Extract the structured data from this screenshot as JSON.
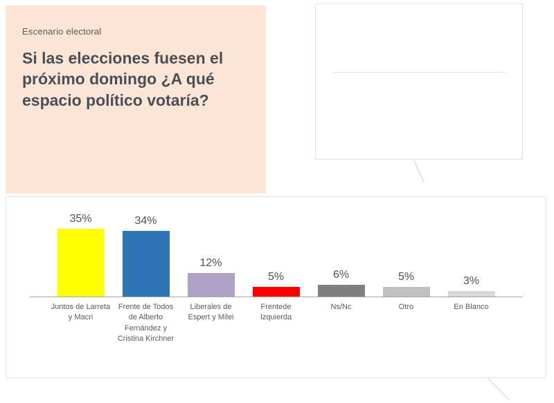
{
  "panel": {
    "kicker": "Escenario electoral",
    "title": "Si las elecciones fuesen el próximo domingo ¿A qué espacio político votaría?"
  },
  "chart_data": {
    "type": "bar",
    "title": "",
    "xlabel": "",
    "ylabel": "",
    "ylim": [
      0,
      40
    ],
    "grid": false,
    "legend": false,
    "categories": [
      "Juntos de Larreta y Macri",
      "Frente de Todos de Alberto Fernández y Cristina Kirchner",
      "Liberales de Espert y Milei",
      "Frentede Izquierda",
      "Ns/Nc",
      "Otro",
      "En Blanco"
    ],
    "values": [
      35,
      34,
      12,
      5,
      6,
      5,
      3
    ],
    "value_labels": [
      "35%",
      "34%",
      "12%",
      "5%",
      "6%",
      "5%",
      "3%"
    ],
    "bar_colors": [
      "#ffff00",
      "#2e75b6",
      "#b2a1c7",
      "#ff0000",
      "#7f7f7f",
      "#bfbfbf",
      "#d9d9d9"
    ]
  },
  "colors": {
    "panel_bg": "#fbe5d6",
    "title_text": "#4a4e57",
    "body_text": "#595959",
    "axis": "#a6a6a6",
    "card_border": "#e3e3e3"
  }
}
